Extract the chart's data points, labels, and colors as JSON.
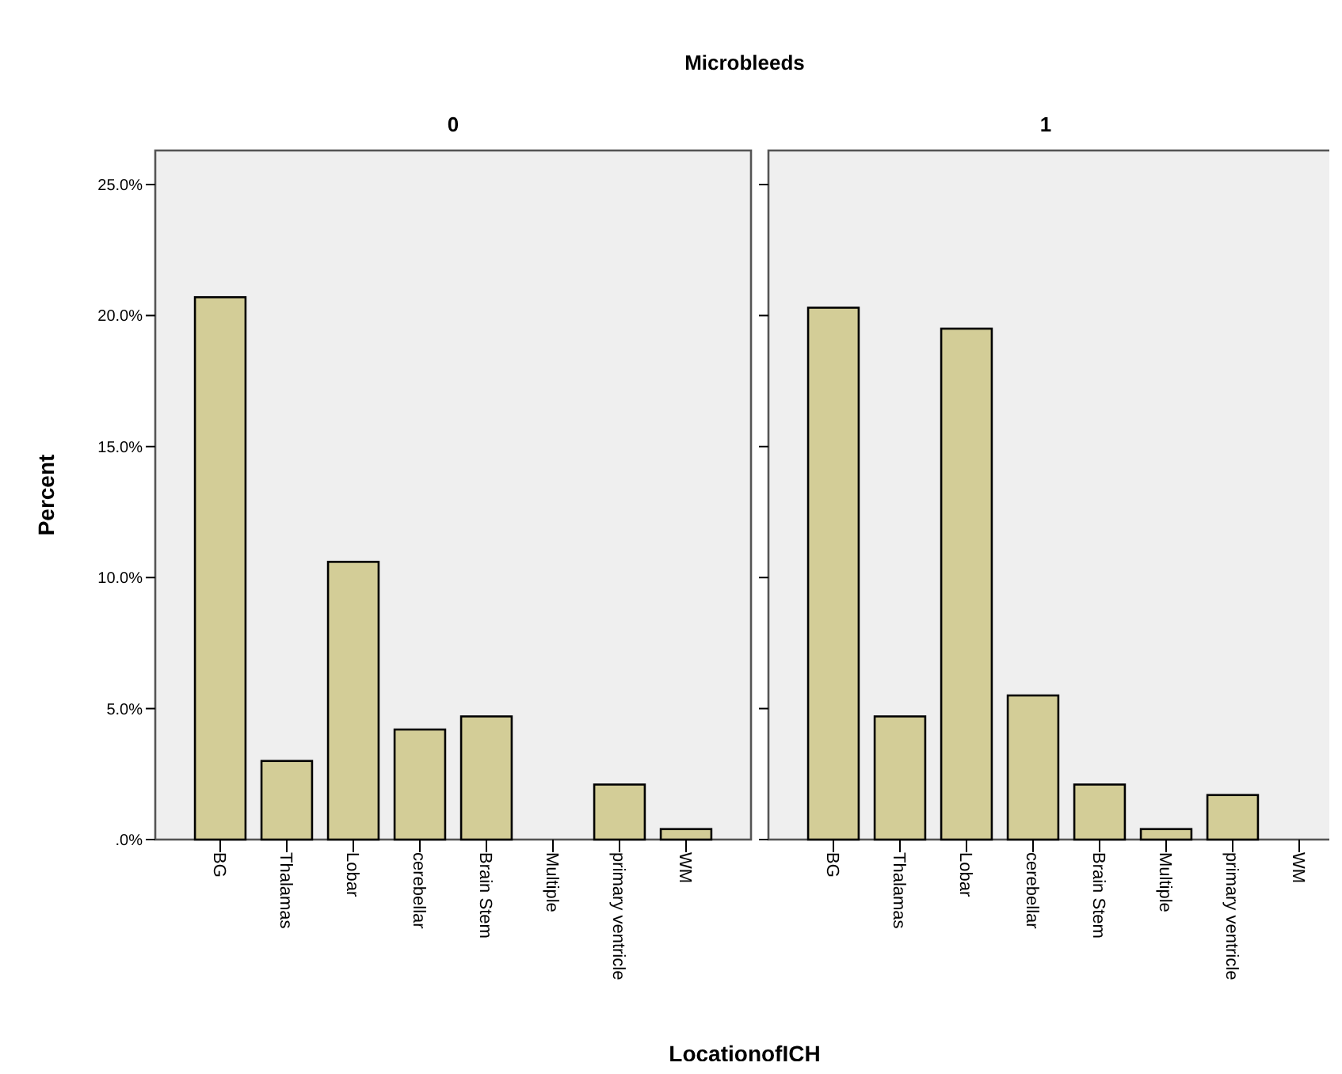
{
  "chart_data": [
    {
      "type": "bar",
      "title": "Microbleeds",
      "subtitle": "0",
      "xlabel": "LocationofICH",
      "ylabel": "Percent",
      "categories": [
        "BG",
        "Thalamas",
        "Lobar",
        "cerebellar",
        "Brain Stem",
        "Multiple",
        "primary ventricle",
        "WM"
      ],
      "values": [
        20.7,
        3.0,
        10.6,
        4.2,
        4.7,
        0,
        2.1,
        0.4
      ],
      "color": "#d3cd97",
      "ylim": [
        0,
        26.3
      ],
      "yticks": [
        {
          "value": 0,
          "label": ".0%"
        },
        {
          "value": 5,
          "label": "5.0%"
        },
        {
          "value": 10,
          "label": "10.0%"
        },
        {
          "value": 15,
          "label": "15.0%"
        },
        {
          "value": 20,
          "label": "20.0%"
        },
        {
          "value": 25,
          "label": "25.0%"
        }
      ],
      "grid": false
    },
    {
      "type": "bar",
      "subtitle": "1",
      "categories": [
        "BG",
        "Thalamas",
        "Lobar",
        "cerebellar",
        "Brain Stem",
        "Multiple",
        "primary ventricle",
        "WM"
      ],
      "values": [
        20.3,
        4.7,
        19.5,
        5.5,
        2.1,
        0.4,
        1.7,
        0
      ],
      "color": "#d3cd97",
      "ylim": [
        0,
        26.3
      ],
      "yticks": [
        {
          "value": 0,
          "label": null
        },
        {
          "value": 5,
          "label": null
        },
        {
          "value": 10,
          "label": null
        },
        {
          "value": 15,
          "label": null
        },
        {
          "value": 20,
          "label": null
        },
        {
          "value": 25,
          "label": null
        }
      ],
      "tick_labels": "x",
      "grid": false
    }
  ]
}
